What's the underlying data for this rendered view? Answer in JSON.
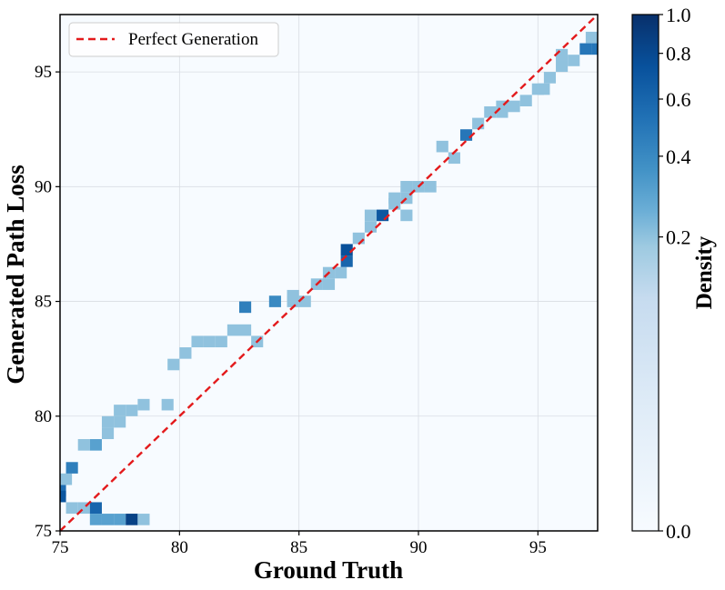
{
  "chart_data": {
    "type": "heatmap",
    "title": "",
    "xlabel": "Ground Truth",
    "ylabel": "Generated Path Loss",
    "xlim": [
      75,
      97.5
    ],
    "ylim": [
      75,
      97.5
    ],
    "xticks": [
      75,
      80,
      85,
      90,
      95
    ],
    "yticks": [
      75,
      80,
      85,
      90,
      95
    ],
    "x_tick_labels": [
      "75",
      "80",
      "85",
      "90",
      "95"
    ],
    "y_tick_labels": [
      "75",
      "80",
      "85",
      "90",
      "95"
    ],
    "grid": true,
    "legend": {
      "position": "top-left",
      "entries": [
        "Perfect Generation"
      ]
    },
    "reference_line": {
      "name": "Perfect Generation",
      "color": "#e31a1c",
      "style": "dashed",
      "from": [
        75,
        75
      ],
      "to": [
        97.5,
        97.5
      ]
    },
    "colorbar": {
      "label": "Density",
      "scale": "power",
      "range": [
        0.0,
        1.0
      ],
      "ticks": [
        0.0,
        0.2,
        0.4,
        0.6,
        0.8,
        1.0
      ],
      "tick_labels": [
        "0.0",
        "0.2",
        "0.4",
        "0.6",
        "0.8",
        "1.0"
      ],
      "colors": [
        "#f7fbff",
        "#deebf7",
        "#c6dbef",
        "#9ecae1",
        "#6baed6",
        "#4292c6",
        "#2171b5",
        "#08519c",
        "#08306b"
      ]
    },
    "bin_width": 0.5,
    "cells": [
      [
        75.0,
        77.25,
        0.2
      ],
      [
        75.25,
        77.25,
        0.2
      ],
      [
        75.5,
        77.75,
        0.45
      ],
      [
        75.0,
        76.75,
        0.55
      ],
      [
        75.0,
        76.5,
        0.7
      ],
      [
        75.5,
        76.0,
        0.2
      ],
      [
        76.0,
        76.0,
        0.2
      ],
      [
        76.5,
        76.0,
        0.6
      ],
      [
        76.5,
        75.5,
        0.3
      ],
      [
        77.0,
        75.5,
        0.3
      ],
      [
        77.5,
        75.5,
        0.3
      ],
      [
        78.0,
        75.5,
        0.85
      ],
      [
        78.5,
        75.5,
        0.2
      ],
      [
        76.0,
        78.75,
        0.2
      ],
      [
        76.5,
        78.75,
        0.3
      ],
      [
        77.0,
        79.25,
        0.2
      ],
      [
        77.0,
        79.75,
        0.2
      ],
      [
        77.5,
        79.75,
        0.2
      ],
      [
        77.5,
        80.25,
        0.2
      ],
      [
        78.0,
        80.25,
        0.2
      ],
      [
        78.5,
        80.5,
        0.2
      ],
      [
        79.5,
        80.5,
        0.2
      ],
      [
        79.75,
        82.25,
        0.2
      ],
      [
        80.25,
        82.75,
        0.2
      ],
      [
        80.75,
        83.25,
        0.2
      ],
      [
        81.25,
        83.25,
        0.2
      ],
      [
        81.75,
        83.25,
        0.2
      ],
      [
        82.25,
        83.75,
        0.2
      ],
      [
        82.75,
        83.75,
        0.2
      ],
      [
        83.25,
        83.25,
        0.2
      ],
      [
        82.75,
        84.75,
        0.45
      ],
      [
        84.0,
        85.0,
        0.4
      ],
      [
        84.75,
        85.25,
        0.2
      ],
      [
        84.75,
        85.0,
        0.2
      ],
      [
        85.25,
        85.0,
        0.2
      ],
      [
        85.75,
        85.75,
        0.2
      ],
      [
        86.25,
        85.75,
        0.2
      ],
      [
        86.25,
        86.25,
        0.2
      ],
      [
        86.75,
        86.25,
        0.2
      ],
      [
        87.0,
        86.75,
        0.6
      ],
      [
        87.0,
        87.25,
        0.75
      ],
      [
        87.5,
        87.75,
        0.2
      ],
      [
        88.0,
        88.25,
        0.2
      ],
      [
        88.0,
        88.75,
        0.2
      ],
      [
        88.5,
        88.75,
        0.7
      ],
      [
        89.0,
        89.25,
        0.2
      ],
      [
        89.0,
        89.5,
        0.2
      ],
      [
        89.5,
        89.5,
        0.2
      ],
      [
        89.5,
        90.0,
        0.2
      ],
      [
        90.0,
        90.0,
        0.2
      ],
      [
        90.5,
        90.0,
        0.2
      ],
      [
        89.5,
        88.75,
        0.2
      ],
      [
        91.0,
        91.75,
        0.2
      ],
      [
        91.5,
        91.25,
        0.2
      ],
      [
        92.0,
        92.25,
        0.5
      ],
      [
        92.5,
        92.75,
        0.2
      ],
      [
        93.0,
        93.25,
        0.2
      ],
      [
        93.5,
        93.25,
        0.2
      ],
      [
        93.5,
        93.5,
        0.2
      ],
      [
        94.0,
        93.5,
        0.2
      ],
      [
        94.5,
        93.75,
        0.2
      ],
      [
        95.0,
        94.25,
        0.2
      ],
      [
        95.25,
        94.25,
        0.2
      ],
      [
        95.5,
        94.75,
        0.2
      ],
      [
        96.0,
        95.25,
        0.2
      ],
      [
        96.0,
        95.75,
        0.2
      ],
      [
        96.5,
        95.5,
        0.2
      ],
      [
        97.0,
        96.0,
        0.5
      ],
      [
        97.5,
        96.0,
        0.5
      ],
      [
        97.25,
        96.5,
        0.2
      ]
    ]
  }
}
